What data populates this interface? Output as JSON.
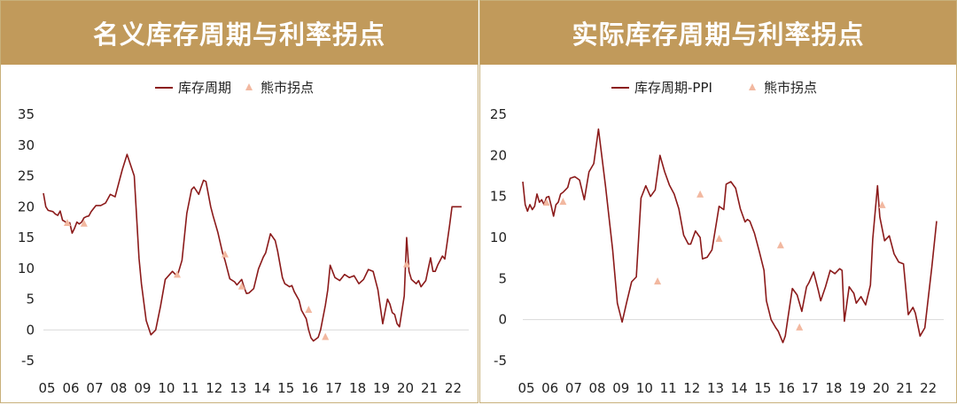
{
  "colors": {
    "header_bg": "#c19a5b",
    "header_text": "#ffffff",
    "line": "#8b1a1a",
    "marker": "#f2b8a0",
    "border": "#c8b07a"
  },
  "chart_data": [
    {
      "type": "line",
      "title": "名义库存周期与利率拐点",
      "legend": {
        "line_label": "库存周期",
        "marker_label": "熊市拐点",
        "placement": "top-center"
      },
      "x_ticks": [
        "05",
        "06",
        "07",
        "08",
        "09",
        "10",
        "11",
        "12",
        "13",
        "14",
        "15",
        "16",
        "17",
        "18",
        "19",
        "20",
        "21",
        "22"
      ],
      "xlim": [
        2005,
        2022.8
      ],
      "ylim": [
        -5,
        35
      ],
      "y_ticks": [
        -5,
        0,
        5,
        10,
        15,
        20,
        25,
        30,
        35
      ],
      "grid": false,
      "series": [
        {
          "name": "库存周期",
          "x": [
            2005.0,
            2005.1,
            2005.2,
            2005.4,
            2005.5,
            2005.6,
            2005.7,
            2005.8,
            2005.9,
            2006.0,
            2006.1,
            2006.2,
            2006.3,
            2006.4,
            2006.5,
            2006.6,
            2006.7,
            2006.8,
            2006.9,
            2007.0,
            2007.2,
            2007.4,
            2007.6,
            2007.8,
            2008.0,
            2008.3,
            2008.5,
            2008.8,
            2009.0,
            2009.1,
            2009.3,
            2009.5,
            2009.7,
            2009.9,
            2010.1,
            2010.4,
            2010.6,
            2010.8,
            2011.0,
            2011.2,
            2011.3,
            2011.5,
            2011.6,
            2011.7,
            2011.8,
            2012.0,
            2012.1,
            2012.3,
            2012.5,
            2012.6,
            2012.8,
            2013.0,
            2013.1,
            2013.3,
            2013.4,
            2013.5,
            2013.6,
            2013.8,
            2014.0,
            2014.2,
            2014.3,
            2014.5,
            2014.7,
            2014.8,
            2015.0,
            2015.1,
            2015.3,
            2015.4,
            2015.5,
            2015.7,
            2015.8,
            2016.0,
            2016.1,
            2016.2,
            2016.3,
            2016.5,
            2016.6,
            2016.8,
            2016.9,
            2017.0,
            2017.2,
            2017.4,
            2017.6,
            2017.8,
            2018.0,
            2018.2,
            2018.4,
            2018.6,
            2018.8,
            2019.0,
            2019.2,
            2019.4,
            2019.5,
            2019.6,
            2019.7,
            2019.8,
            2019.9,
            2020.1,
            2020.2,
            2020.3,
            2020.4,
            2020.6,
            2020.7,
            2020.8,
            2020.9,
            2021.0,
            2021.2,
            2021.3,
            2021.4,
            2021.5,
            2021.7,
            2021.8,
            2022.0,
            2022.1,
            2022.3,
            2022.5
          ],
          "y": [
            22.2,
            20.0,
            19.4,
            19.2,
            18.8,
            18.6,
            19.3,
            17.8,
            17.6,
            17.2,
            17.4,
            15.7,
            16.5,
            17.5,
            17.2,
            17.5,
            18.2,
            18.4,
            18.5,
            19.2,
            20.2,
            20.2,
            20.6,
            22.0,
            21.6,
            26.0,
            28.5,
            25.0,
            11.6,
            7.5,
            1.5,
            -0.8,
            0.0,
            3.8,
            8.2,
            9.5,
            8.7,
            11.3,
            18.9,
            22.8,
            23.2,
            22.0,
            23.2,
            24.3,
            24.1,
            20.0,
            18.5,
            15.8,
            12.5,
            11.3,
            8.3,
            7.8,
            7.3,
            8.2,
            6.9,
            5.9,
            6.0,
            6.7,
            9.9,
            11.8,
            12.5,
            15.6,
            14.5,
            12.8,
            8.5,
            7.5,
            7.0,
            7.2,
            6.2,
            4.8,
            3.2,
            1.8,
            0.0,
            -1.3,
            -1.8,
            -1.2,
            0.0,
            4.0,
            6.5,
            10.5,
            8.5,
            8.0,
            9.0,
            8.5,
            8.8,
            7.5,
            8.2,
            9.8,
            9.5,
            6.5,
            1.0,
            5.0,
            4.2,
            2.8,
            2.5,
            1.0,
            0.5,
            5.5,
            15.0,
            9.5,
            8.2,
            7.5,
            8.0,
            7.0,
            7.5,
            8.0,
            11.7,
            9.5,
            9.5,
            10.5,
            12.0,
            11.5,
            17.0,
            20.0,
            20.0,
            20.0
          ],
          "color": "#8b1a1a"
        }
      ],
      "markers": {
        "name": "熊市拐点",
        "x": [
          2006.0,
          2006.7,
          2010.6,
          2012.6,
          2013.3,
          2016.1,
          2016.8,
          2020.2
        ],
        "y": [
          17.3,
          17.2,
          8.9,
          12.2,
          7.0,
          3.2,
          -1.2,
          10.6
        ],
        "color": "#f2b8a0"
      }
    },
    {
      "type": "line",
      "title": "实际库存周期与利率拐点",
      "legend": {
        "line_label": "库存周期-PPI",
        "marker_label": "熊市拐点",
        "placement": "top-center"
      },
      "x_ticks": [
        "05",
        "06",
        "07",
        "08",
        "09",
        "10",
        "11",
        "12",
        "13",
        "14",
        "15",
        "16",
        "17",
        "18",
        "19",
        "20",
        "21",
        "22"
      ],
      "xlim": [
        2005,
        2022.8
      ],
      "ylim": [
        -5,
        25
      ],
      "y_ticks": [
        -5,
        0,
        5,
        10,
        15,
        20,
        25
      ],
      "grid": false,
      "series": [
        {
          "name": "库存周期-PPI",
          "x": [
            2005.0,
            2005.1,
            2005.2,
            2005.3,
            2005.4,
            2005.5,
            2005.6,
            2005.7,
            2005.8,
            2005.9,
            2006.0,
            2006.1,
            2006.2,
            2006.3,
            2006.4,
            2006.5,
            2006.6,
            2006.7,
            2006.8,
            2006.9,
            2007.0,
            2007.2,
            2007.4,
            2007.6,
            2007.8,
            2008.0,
            2008.2,
            2008.5,
            2008.8,
            2009.0,
            2009.2,
            2009.4,
            2009.6,
            2009.8,
            2010.0,
            2010.2,
            2010.4,
            2010.6,
            2010.8,
            2011.0,
            2011.2,
            2011.4,
            2011.6,
            2011.8,
            2012.0,
            2012.1,
            2012.3,
            2012.5,
            2012.6,
            2012.8,
            2013.0,
            2013.2,
            2013.3,
            2013.5,
            2013.6,
            2013.8,
            2014.0,
            2014.2,
            2014.4,
            2014.5,
            2014.6,
            2014.8,
            2015.0,
            2015.2,
            2015.3,
            2015.5,
            2015.7,
            2015.8,
            2016.0,
            2016.1,
            2016.2,
            2016.4,
            2016.6,
            2016.8,
            2017.0,
            2017.1,
            2017.3,
            2017.5,
            2017.6,
            2017.8,
            2018.0,
            2018.2,
            2018.4,
            2018.5,
            2018.6,
            2018.8,
            2018.9,
            2019.0,
            2019.1,
            2019.3,
            2019.5,
            2019.7,
            2019.8,
            2020.0,
            2020.1,
            2020.3,
            2020.5,
            2020.7,
            2020.9,
            2021.1,
            2021.3,
            2021.5,
            2021.6,
            2021.8,
            2022.0,
            2022.3,
            2022.5
          ],
          "y": [
            16.8,
            14.0,
            13.2,
            14.0,
            13.4,
            13.8,
            15.3,
            14.3,
            14.6,
            14.0,
            14.9,
            15.0,
            13.9,
            12.6,
            14.0,
            14.3,
            15.3,
            15.5,
            15.8,
            16.1,
            17.2,
            17.4,
            17.0,
            14.6,
            18.0,
            19.0,
            23.2,
            16.2,
            8.5,
            2.0,
            -0.3,
            2.2,
            4.6,
            5.2,
            14.8,
            16.3,
            15.0,
            15.8,
            20.0,
            18.0,
            16.4,
            15.3,
            13.5,
            10.3,
            9.2,
            9.2,
            10.8,
            10.0,
            7.4,
            7.6,
            8.5,
            12.0,
            13.8,
            13.4,
            16.5,
            16.8,
            16.0,
            13.5,
            11.9,
            12.2,
            12.0,
            10.5,
            8.3,
            6.0,
            2.3,
            0.0,
            -1.0,
            -1.4,
            -2.8,
            -2.0,
            0.0,
            3.8,
            3.0,
            1.0,
            4.0,
            4.5,
            5.8,
            3.5,
            2.3,
            4.0,
            6.0,
            5.6,
            6.2,
            6.0,
            -0.2,
            4.0,
            3.6,
            3.2,
            2.0,
            2.8,
            1.8,
            4.2,
            9.8,
            16.3,
            12.5,
            9.6,
            10.2,
            8.0,
            7.0,
            6.8,
            0.6,
            1.5,
            0.8,
            -2.0,
            -1.0,
            6.5,
            12.0
          ],
          "color": "#8b1a1a"
        }
      ],
      "markers": {
        "name": "熊市拐点",
        "x": [
          2006.0,
          2006.7,
          2010.7,
          2012.5,
          2013.3,
          2015.9,
          2016.7,
          2020.2
        ],
        "y": [
          14.2,
          14.3,
          4.6,
          15.2,
          9.8,
          9.0,
          -1.0,
          13.9
        ],
        "color": "#f2b8a0"
      }
    }
  ]
}
